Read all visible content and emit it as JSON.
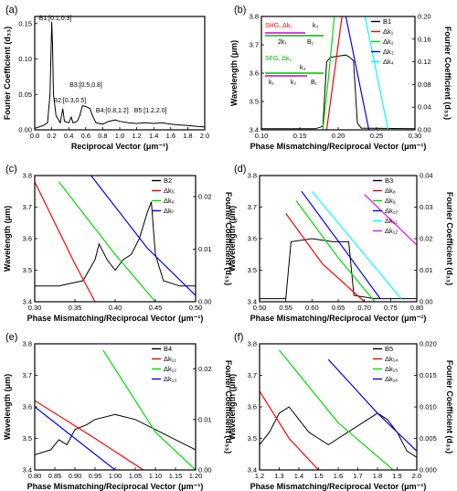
{
  "chart_data": [
    {
      "panel": "(a)",
      "type": "line",
      "xlabel": "Reciprocal Vector",
      "xunit": "(μm⁻¹)",
      "ylabel": "Fourier Coefficient (d₃₃)",
      "xlim": [
        0.0,
        2.0
      ],
      "ylim": [
        0.0,
        0.16
      ],
      "xticks": [
        0.0,
        0.2,
        0.4,
        0.6,
        0.8,
        1.0,
        1.2,
        1.4,
        1.6,
        1.8,
        2.0
      ],
      "yticks": [
        0.0,
        0.05,
        0.1,
        0.15
      ],
      "annotations": [
        {
          "text": "B1:[0.1,0.3]",
          "x": 0.2,
          "y": 0.152
        },
        {
          "text": "B2:[0.3,0.5]",
          "x": 0.37,
          "y": 0.036
        },
        {
          "text": "B3:[0.5,0.8]",
          "x": 0.56,
          "y": 0.058
        },
        {
          "text": "B4:[0.8,1.2]",
          "x": 0.87,
          "y": 0.022
        },
        {
          "text": "B5:[1.2,2.0]",
          "x": 1.32,
          "y": 0.022
        }
      ],
      "series": [
        {
          "values": [
            [
              0,
              0.002
            ],
            [
              0.05,
              0.004
            ],
            [
              0.1,
              0.006
            ],
            [
              0.15,
              0.01
            ],
            [
              0.18,
              0.05
            ],
            [
              0.2,
              0.152
            ],
            [
              0.21,
              0.12
            ],
            [
              0.22,
              0.05
            ],
            [
              0.25,
              0.02
            ],
            [
              0.3,
              0.01
            ],
            [
              0.33,
              0.03
            ],
            [
              0.35,
              0.012
            ],
            [
              0.4,
              0.01
            ],
            [
              0.43,
              0.018
            ],
            [
              0.45,
              0.01
            ],
            [
              0.5,
              0.012
            ],
            [
              0.53,
              0.02
            ],
            [
              0.56,
              0.034
            ],
            [
              0.6,
              0.033
            ],
            [
              0.65,
              0.03
            ],
            [
              0.68,
              0.02
            ],
            [
              0.72,
              0.01
            ],
            [
              0.8,
              0.008
            ],
            [
              0.87,
              0.012
            ],
            [
              0.95,
              0.014
            ],
            [
              1.0,
              0.012
            ],
            [
              1.1,
              0.01
            ],
            [
              1.2,
              0.009
            ],
            [
              1.3,
              0.01
            ],
            [
              1.4,
              0.009
            ],
            [
              1.5,
              0.01
            ],
            [
              1.6,
              0.008
            ],
            [
              1.7,
              0.007
            ],
            [
              1.8,
              0.006
            ],
            [
              1.9,
              0.005
            ],
            [
              2.0,
              0.004
            ]
          ],
          "color": "#000000"
        }
      ]
    },
    {
      "panel": "(b)",
      "type": "line",
      "xlabel": "Phase Mismatching/Reciprocal Vector",
      "xunit": "(μm⁻¹)",
      "ylabel": "Wavelength (μm)",
      "y2label": "Fourier Coefficient (d₃₃)",
      "xlim": [
        0.1,
        0.3
      ],
      "ylim": [
        3.4,
        3.8
      ],
      "y2lim": [
        0.0,
        0.2
      ],
      "xticks": [
        0.1,
        0.15,
        0.2,
        0.25,
        0.3
      ],
      "yticks": [
        3.4,
        3.5,
        3.6,
        3.7,
        3.8
      ],
      "y2ticks": [
        0.0,
        0.04,
        0.08,
        0.12,
        0.16,
        0.2
      ],
      "legend": [
        "B1",
        "Δk₁",
        "Δk₂",
        "Δk₃",
        "Δk₄"
      ],
      "inset": {
        "shg": "SHG, Δk₁",
        "sfg": "SFG, Δk₂",
        "k1": "k₁",
        "k2": "k₂",
        "k3": "k₃",
        "two_k1": "2k₁",
        "b1": "B₁"
      },
      "series": [
        {
          "name": "B1",
          "color": "#000000",
          "axis": "y2",
          "values": [
            [
              0.1,
              0.002
            ],
            [
              0.17,
              0.002
            ],
            [
              0.18,
              0.006
            ],
            [
              0.185,
              0.12
            ],
            [
              0.19,
              0.128
            ],
            [
              0.2,
              0.13
            ],
            [
              0.21,
              0.132
            ],
            [
              0.215,
              0.128
            ],
            [
              0.22,
              0.122
            ],
            [
              0.225,
              0.012
            ],
            [
              0.23,
              0.003
            ],
            [
              0.3,
              0.002
            ]
          ]
        },
        {
          "name": "Δk₁",
          "color": "#ff0000",
          "values": [
            [
              0.185,
              3.4
            ],
            [
              0.195,
              3.6
            ],
            [
              0.205,
              3.8
            ]
          ]
        },
        {
          "name": "Δk₂",
          "color": "#00dd00",
          "values": [
            [
              0.18,
              3.4
            ],
            [
              0.188,
              3.6
            ],
            [
              0.195,
              3.8
            ]
          ]
        },
        {
          "name": "Δk₃",
          "color": "#0000ff",
          "values": [
            [
              0.24,
              3.4
            ],
            [
              0.225,
              3.6
            ],
            [
              0.21,
              3.8
            ]
          ]
        },
        {
          "name": "Δk₄",
          "color": "#00ffff",
          "values": [
            [
              0.265,
              3.4
            ],
            [
              0.25,
              3.6
            ],
            [
              0.235,
              3.8
            ]
          ]
        }
      ]
    },
    {
      "panel": "(c)",
      "type": "line",
      "xlabel": "Phase Mismatching/Reciprocal Vector",
      "xunit": "(μm⁻¹)",
      "ylabel": "Wavelength (μm)",
      "y2label": "Fourier Coefficient (d₃₃)",
      "xlim": [
        0.3,
        0.5
      ],
      "ylim": [
        3.4,
        3.8
      ],
      "y2lim": [
        0.0,
        0.024
      ],
      "xticks": [
        0.3,
        0.35,
        0.4,
        0.45,
        0.5
      ],
      "yticks": [
        3.4,
        3.5,
        3.6,
        3.7,
        3.8
      ],
      "y2ticks": [
        0.0,
        0.01,
        0.02
      ],
      "legend": [
        "B2",
        "Δk₅",
        "Δk₆",
        "Δk₇"
      ],
      "series": [
        {
          "name": "B2",
          "color": "#000000",
          "axis": "y2",
          "values": [
            [
              0.3,
              0.003
            ],
            [
              0.33,
              0.003
            ],
            [
              0.36,
              0.004
            ],
            [
              0.375,
              0.008
            ],
            [
              0.38,
              0.011
            ],
            [
              0.39,
              0.008
            ],
            [
              0.4,
              0.006
            ],
            [
              0.41,
              0.008
            ],
            [
              0.42,
              0.009
            ],
            [
              0.43,
              0.012
            ],
            [
              0.44,
              0.017
            ],
            [
              0.445,
              0.019
            ],
            [
              0.45,
              0.009
            ],
            [
              0.46,
              0.004
            ],
            [
              0.48,
              0.003
            ],
            [
              0.5,
              0.003
            ]
          ]
        },
        {
          "name": "Δk₅",
          "color": "#ff0000",
          "values": [
            [
              0.3,
              3.78
            ],
            [
              0.35,
              3.52
            ],
            [
              0.375,
              3.4
            ]
          ]
        },
        {
          "name": "Δk₆",
          "color": "#00dd00",
          "values": [
            [
              0.33,
              3.78
            ],
            [
              0.4,
              3.55
            ],
            [
              0.45,
              3.4
            ]
          ]
        },
        {
          "name": "Δk₇",
          "color": "#0000ff",
          "values": [
            [
              0.37,
              3.8
            ],
            [
              0.44,
              3.57
            ],
            [
              0.5,
              3.42
            ]
          ]
        }
      ]
    },
    {
      "panel": "(d)",
      "type": "line",
      "xlabel": "Phase Mismatching/Reciprocal Vector",
      "xunit": "(μm⁻¹)",
      "ylabel": "Wavelength (μm)",
      "y2label": "Fourier Coefficient (d₃₃)",
      "xlim": [
        0.5,
        0.8
      ],
      "ylim": [
        3.4,
        3.8
      ],
      "y2lim": [
        0.0,
        0.04
      ],
      "xticks": [
        0.5,
        0.55,
        0.6,
        0.65,
        0.7,
        0.75,
        0.8
      ],
      "yticks": [
        3.4,
        3.5,
        3.6,
        3.7,
        3.8
      ],
      "y2ticks": [
        0.0,
        0.01,
        0.02,
        0.03,
        0.04
      ],
      "legend": [
        "B3",
        "Δk₈",
        "Δk₉",
        "Δk₁₀",
        "Δk₁₁",
        "Δk₁₂"
      ],
      "series": [
        {
          "name": "B3",
          "color": "#000000",
          "axis": "y2",
          "values": [
            [
              0.5,
              0.001
            ],
            [
              0.55,
              0.001
            ],
            [
              0.56,
              0.019
            ],
            [
              0.6,
              0.02
            ],
            [
              0.64,
              0.019
            ],
            [
              0.67,
              0.019
            ],
            [
              0.68,
              0.002
            ],
            [
              0.72,
              0.001
            ],
            [
              0.8,
              0.001
            ]
          ]
        },
        {
          "name": "Δk₈",
          "color": "#ff0000",
          "values": [
            [
              0.55,
              3.68
            ],
            [
              0.62,
              3.52
            ],
            [
              0.7,
              3.4
            ]
          ]
        },
        {
          "name": "Δk₉",
          "color": "#00dd00",
          "values": [
            [
              0.57,
              3.72
            ],
            [
              0.65,
              3.54
            ],
            [
              0.72,
              3.4
            ]
          ]
        },
        {
          "name": "Δk₁₀",
          "color": "#0000ff",
          "values": [
            [
              0.58,
              3.75
            ],
            [
              0.66,
              3.57
            ],
            [
              0.73,
              3.41
            ]
          ]
        },
        {
          "name": "Δk₁₁",
          "color": "#00ffff",
          "values": [
            [
              0.6,
              3.75
            ],
            [
              0.7,
              3.55
            ],
            [
              0.77,
              3.41
            ]
          ]
        },
        {
          "name": "Δk₁₂",
          "color": "#ff00ff",
          "values": [
            [
              0.7,
              3.74
            ],
            [
              0.75,
              3.66
            ],
            [
              0.8,
              3.58
            ]
          ]
        }
      ]
    },
    {
      "panel": "(e)",
      "type": "line",
      "xlabel": "Phase Mismatching/Reciprocal Vector",
      "xunit": "(μm⁻¹)",
      "ylabel": "Wavelength (μm)",
      "y2label": "Fourier Coefficient (d₃₃)",
      "xlim": [
        0.8,
        1.2
      ],
      "ylim": [
        3.4,
        3.8
      ],
      "y2lim": [
        0.0,
        0.025
      ],
      "xticks": [
        0.8,
        0.85,
        0.9,
        0.95,
        1.0,
        1.05,
        1.1,
        1.15,
        1.2
      ],
      "yticks": [
        3.4,
        3.5,
        3.6,
        3.7,
        3.8
      ],
      "y2ticks": [
        0.0,
        0.01,
        0.02
      ],
      "legend": [
        "B4",
        "Δk₁₁",
        "Δk₁₂",
        "Δk₁₃"
      ],
      "series": [
        {
          "name": "B4",
          "color": "#000000",
          "axis": "y2",
          "values": [
            [
              0.8,
              0.003
            ],
            [
              0.84,
              0.004
            ],
            [
              0.86,
              0.006
            ],
            [
              0.88,
              0.005
            ],
            [
              0.9,
              0.008
            ],
            [
              0.93,
              0.009
            ],
            [
              0.95,
              0.01
            ],
            [
              1.0,
              0.011
            ],
            [
              1.05,
              0.01
            ],
            [
              1.1,
              0.008
            ],
            [
              1.15,
              0.006
            ],
            [
              1.2,
              0.004
            ]
          ]
        },
        {
          "name": "Δk₁₁",
          "color": "#ff0000",
          "values": [
            [
              0.8,
              3.62
            ],
            [
              0.95,
              3.5
            ],
            [
              1.07,
              3.4
            ]
          ]
        },
        {
          "name": "Δk₁₂",
          "color": "#00dd00",
          "values": [
            [
              0.97,
              3.78
            ],
            [
              1.1,
              3.52
            ],
            [
              1.2,
              3.4
            ]
          ]
        },
        {
          "name": "Δk₁₃",
          "color": "#0000ff",
          "values": [
            [
              0.8,
              3.6
            ],
            [
              0.9,
              3.5
            ],
            [
              1.0,
              3.4
            ]
          ]
        }
      ]
    },
    {
      "panel": "(f)",
      "type": "line",
      "xlabel": "Phase Mismatching/Reciprocal Vector",
      "xunit": "(μm⁻¹)",
      "ylabel": "Wavelength (μm)",
      "y2label": "Fourier Coefficient (d₃₃)",
      "xlim": [
        1.2,
        2.0
      ],
      "ylim": [
        3.4,
        3.8
      ],
      "y2lim": [
        0.0,
        0.02
      ],
      "xticks": [
        1.2,
        1.3,
        1.4,
        1.5,
        1.6,
        1.7,
        1.8,
        1.9,
        2.0
      ],
      "yticks": [
        3.4,
        3.5,
        3.6,
        3.7,
        3.8
      ],
      "y2ticks": [
        0.0,
        0.005,
        0.01,
        0.015,
        0.02
      ],
      "legend": [
        "B5",
        "Δk₁₄",
        "Δk₁₅",
        "Δk₁₆"
      ],
      "series": [
        {
          "name": "B5",
          "color": "#000000",
          "axis": "y2",
          "values": [
            [
              1.2,
              0.004
            ],
            [
              1.25,
              0.006
            ],
            [
              1.3,
              0.009
            ],
            [
              1.35,
              0.01
            ],
            [
              1.4,
              0.008
            ],
            [
              1.45,
              0.006
            ],
            [
              1.5,
              0.005
            ],
            [
              1.55,
              0.004
            ],
            [
              1.6,
              0.005
            ],
            [
              1.65,
              0.006
            ],
            [
              1.7,
              0.007
            ],
            [
              1.75,
              0.008
            ],
            [
              1.8,
              0.009
            ],
            [
              1.85,
              0.008
            ],
            [
              1.9,
              0.006
            ],
            [
              1.95,
              0.003
            ],
            [
              2.0,
              0.002
            ]
          ]
        },
        {
          "name": "Δk₁₄",
          "color": "#ff0000",
          "values": [
            [
              1.2,
              3.65
            ],
            [
              1.35,
              3.5
            ],
            [
              1.5,
              3.4
            ]
          ]
        },
        {
          "name": "Δk₁₅",
          "color": "#00dd00",
          "values": [
            [
              1.3,
              3.78
            ],
            [
              1.6,
              3.55
            ],
            [
              1.88,
              3.4
            ]
          ]
        },
        {
          "name": "Δk₁₆",
          "color": "#0000ff",
          "values": [
            [
              1.55,
              3.75
            ],
            [
              1.8,
              3.58
            ],
            [
              2.0,
              3.46
            ]
          ]
        }
      ]
    }
  ]
}
